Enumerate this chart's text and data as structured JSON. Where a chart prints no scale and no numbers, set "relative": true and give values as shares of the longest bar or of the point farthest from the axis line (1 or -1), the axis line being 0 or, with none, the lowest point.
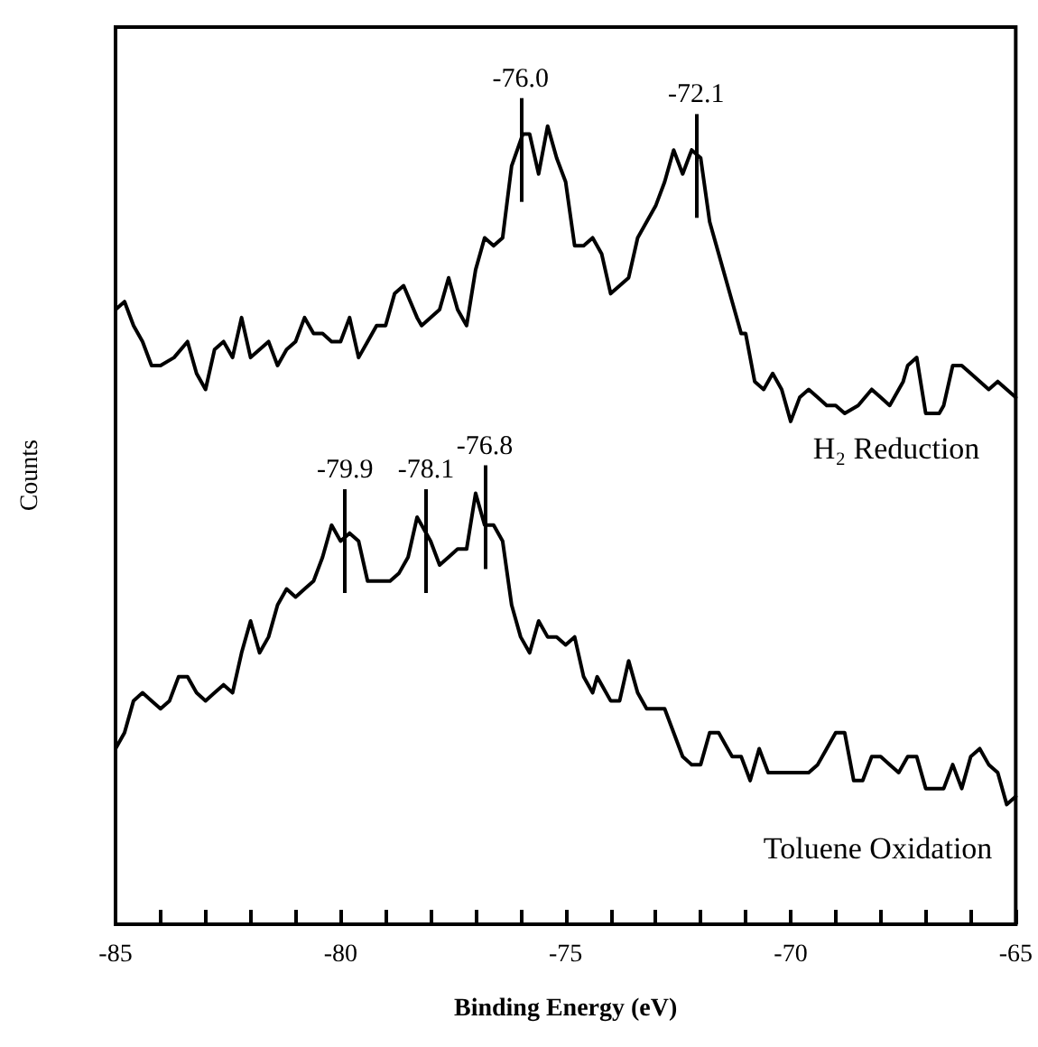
{
  "chart_data": {
    "type": "line",
    "relative": true,
    "xlabel": "Binding Energy (eV)",
    "ylabel": "Counts",
    "xlim": [
      -85,
      -65
    ],
    "xticks": [
      -85,
      -80,
      -75,
      -70,
      -65
    ],
    "grid": false,
    "marker": "none",
    "line_style": "solid",
    "series": [
      {
        "name": "H₂ Reduction",
        "color": "#000000",
        "x": [
          -85.0,
          -84.8,
          -84.6,
          -84.4,
          -84.2,
          -84.0,
          -83.7,
          -83.4,
          -83.2,
          -83.0,
          -82.8,
          -82.6,
          -82.4,
          -82.2,
          -82.0,
          -81.6,
          -81.4,
          -81.2,
          -81.0,
          -80.8,
          -80.6,
          -80.4,
          -80.2,
          -80.0,
          -79.8,
          -79.6,
          -79.4,
          -79.2,
          -79.0,
          -78.8,
          -78.6,
          -78.3,
          -78.2,
          -77.8,
          -77.6,
          -77.4,
          -77.2,
          -77.0,
          -76.8,
          -76.6,
          -76.4,
          -76.2,
          -75.95,
          -75.8,
          -75.6,
          -75.4,
          -75.2,
          -75.0,
          -74.8,
          -74.6,
          -74.4,
          -74.2,
          -74.0,
          -73.8,
          -73.6,
          -73.4,
          -73.2,
          -73.0,
          -72.8,
          -72.6,
          -72.4,
          -72.2,
          -72.0,
          -71.8,
          -71.6,
          -71.3,
          -71.1,
          -71.0,
          -70.8,
          -70.6,
          -70.4,
          -70.2,
          -70.0,
          -69.8,
          -69.6,
          -69.4,
          -69.2,
          -69.0,
          -68.8,
          -68.5,
          -68.2,
          -68.0,
          -67.8,
          -67.5,
          -67.4,
          -67.2,
          -67.0,
          -66.7,
          -66.6,
          -66.4,
          -66.2,
          -66.0,
          -65.6,
          -65.4,
          -65.2,
          -65.0
        ],
        "values": [
          0.77,
          0.78,
          0.75,
          0.73,
          0.7,
          0.7,
          0.71,
          0.73,
          0.69,
          0.67,
          0.72,
          0.73,
          0.71,
          0.76,
          0.71,
          0.73,
          0.7,
          0.72,
          0.73,
          0.76,
          0.74,
          0.74,
          0.73,
          0.73,
          0.76,
          0.71,
          0.73,
          0.75,
          0.75,
          0.79,
          0.8,
          0.76,
          0.75,
          0.77,
          0.81,
          0.77,
          0.75,
          0.82,
          0.86,
          0.85,
          0.86,
          0.95,
          0.99,
          0.99,
          0.94,
          1.0,
          0.96,
          0.93,
          0.85,
          0.85,
          0.86,
          0.84,
          0.79,
          0.8,
          0.81,
          0.86,
          0.88,
          0.9,
          0.93,
          0.97,
          0.94,
          0.97,
          0.96,
          0.88,
          0.84,
          0.78,
          0.74,
          0.74,
          0.68,
          0.67,
          0.69,
          0.67,
          0.63,
          0.66,
          0.67,
          0.66,
          0.65,
          0.65,
          0.64,
          0.65,
          0.67,
          0.66,
          0.65,
          0.68,
          0.7,
          0.71,
          0.64,
          0.64,
          0.65,
          0.7,
          0.7,
          0.69,
          0.67,
          0.68,
          0.67,
          0.66
        ]
      },
      {
        "name": "Toluene Oxidation",
        "color": "#000000",
        "x": [
          -85.0,
          -84.8,
          -84.6,
          -84.4,
          -84.2,
          -84.0,
          -83.8,
          -83.6,
          -83.4,
          -83.2,
          -83.0,
          -82.8,
          -82.6,
          -82.4,
          -82.2,
          -82.0,
          -81.8,
          -81.6,
          -81.4,
          -81.2,
          -81.0,
          -80.8,
          -80.6,
          -80.4,
          -80.2,
          -80.0,
          -79.8,
          -79.6,
          -79.4,
          -79.1,
          -78.9,
          -78.7,
          -78.5,
          -78.3,
          -78.2,
          -78.0,
          -77.8,
          -77.6,
          -77.4,
          -77.2,
          -77.0,
          -76.8,
          -76.6,
          -76.4,
          -76.2,
          -76.0,
          -75.8,
          -75.6,
          -75.4,
          -75.2,
          -75.0,
          -74.8,
          -74.6,
          -74.4,
          -74.3,
          -74.0,
          -73.8,
          -73.6,
          -73.4,
          -73.2,
          -73.0,
          -72.8,
          -72.6,
          -72.4,
          -72.2,
          -72.0,
          -71.8,
          -71.6,
          -71.4,
          -71.3,
          -71.1,
          -70.9,
          -70.7,
          -70.5,
          -70.3,
          -70.1,
          -69.8,
          -69.6,
          -69.4,
          -69.2,
          -69.0,
          -68.8,
          -68.6,
          -68.4,
          -68.2,
          -68.0,
          -67.8,
          -67.6,
          -67.4,
          -67.2,
          -67.0,
          -66.8,
          -66.6,
          -66.4,
          -66.2,
          -66.0,
          -65.8,
          -65.6,
          -65.4,
          -65.2,
          -65.0
        ],
        "values": [
          0.22,
          0.24,
          0.28,
          0.29,
          0.28,
          0.27,
          0.28,
          0.31,
          0.31,
          0.29,
          0.28,
          0.29,
          0.3,
          0.29,
          0.34,
          0.38,
          0.34,
          0.36,
          0.4,
          0.42,
          0.41,
          0.42,
          0.43,
          0.46,
          0.5,
          0.48,
          0.49,
          0.48,
          0.43,
          0.43,
          0.43,
          0.44,
          0.46,
          0.51,
          0.5,
          0.48,
          0.45,
          0.46,
          0.47,
          0.47,
          0.54,
          0.5,
          0.5,
          0.48,
          0.4,
          0.36,
          0.34,
          0.38,
          0.36,
          0.36,
          0.35,
          0.36,
          0.31,
          0.29,
          0.31,
          0.28,
          0.28,
          0.33,
          0.29,
          0.27,
          0.27,
          0.27,
          0.24,
          0.21,
          0.2,
          0.2,
          0.24,
          0.24,
          0.22,
          0.21,
          0.21,
          0.18,
          0.22,
          0.19,
          0.19,
          0.19,
          0.19,
          0.19,
          0.2,
          0.22,
          0.24,
          0.24,
          0.18,
          0.18,
          0.21,
          0.21,
          0.2,
          0.19,
          0.21,
          0.21,
          0.17,
          0.17,
          0.17,
          0.2,
          0.17,
          0.21,
          0.22,
          0.2,
          0.19,
          0.15,
          0.16
        ]
      }
    ],
    "annotations": [
      {
        "text": "-76.0",
        "x": -76.0,
        "y": 0.97
      },
      {
        "text": "-72.1",
        "x": -72.1,
        "y": 0.95
      },
      {
        "text": "-79.9",
        "x": -79.9,
        "y": 0.48
      },
      {
        "text": "-78.1",
        "x": -78.1,
        "y": 0.48
      },
      {
        "text": "-76.8",
        "x": -76.8,
        "y": 0.51
      }
    ]
  }
}
